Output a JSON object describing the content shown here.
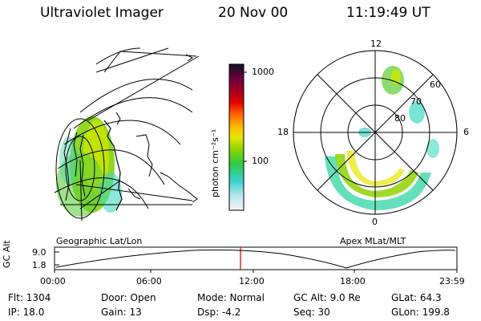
{
  "header": {
    "instrument": "Ultraviolet Imager",
    "date": "20 Nov 00",
    "time": "11:19:49 UT"
  },
  "geo_panel": {
    "label": "Geographic Lat/Lon"
  },
  "polar_panel": {
    "label": "Apex MLat/MLT",
    "mlt_labels": [
      "12",
      "18",
      "6",
      "0"
    ],
    "lat_labels": [
      "60",
      "70",
      "80"
    ]
  },
  "colorbar": {
    "unit_label": "photon cm⁻²s⁻¹",
    "ticks": [
      "1000",
      "100"
    ]
  },
  "altitude_plot": {
    "ylabel": "GC Alt",
    "yticks": [
      "9.0",
      "1.8"
    ],
    "xticks": [
      "00:00",
      "06:00",
      "12:00",
      "18:00",
      "23:59"
    ],
    "marker_color": "#c00000"
  },
  "info": {
    "flt": "Flt: 1304",
    "ip": "IP: 18.0",
    "door": "Door: Open",
    "gain": "Gain: 13",
    "mode": "Mode: Normal",
    "dsp": "Dsp:    -4.2",
    "gcalt": "GC Alt: 9.0 Re",
    "seq": "Seq: 30",
    "glat": "GLat:  64.3",
    "glon": "GLon: 199.8"
  }
}
